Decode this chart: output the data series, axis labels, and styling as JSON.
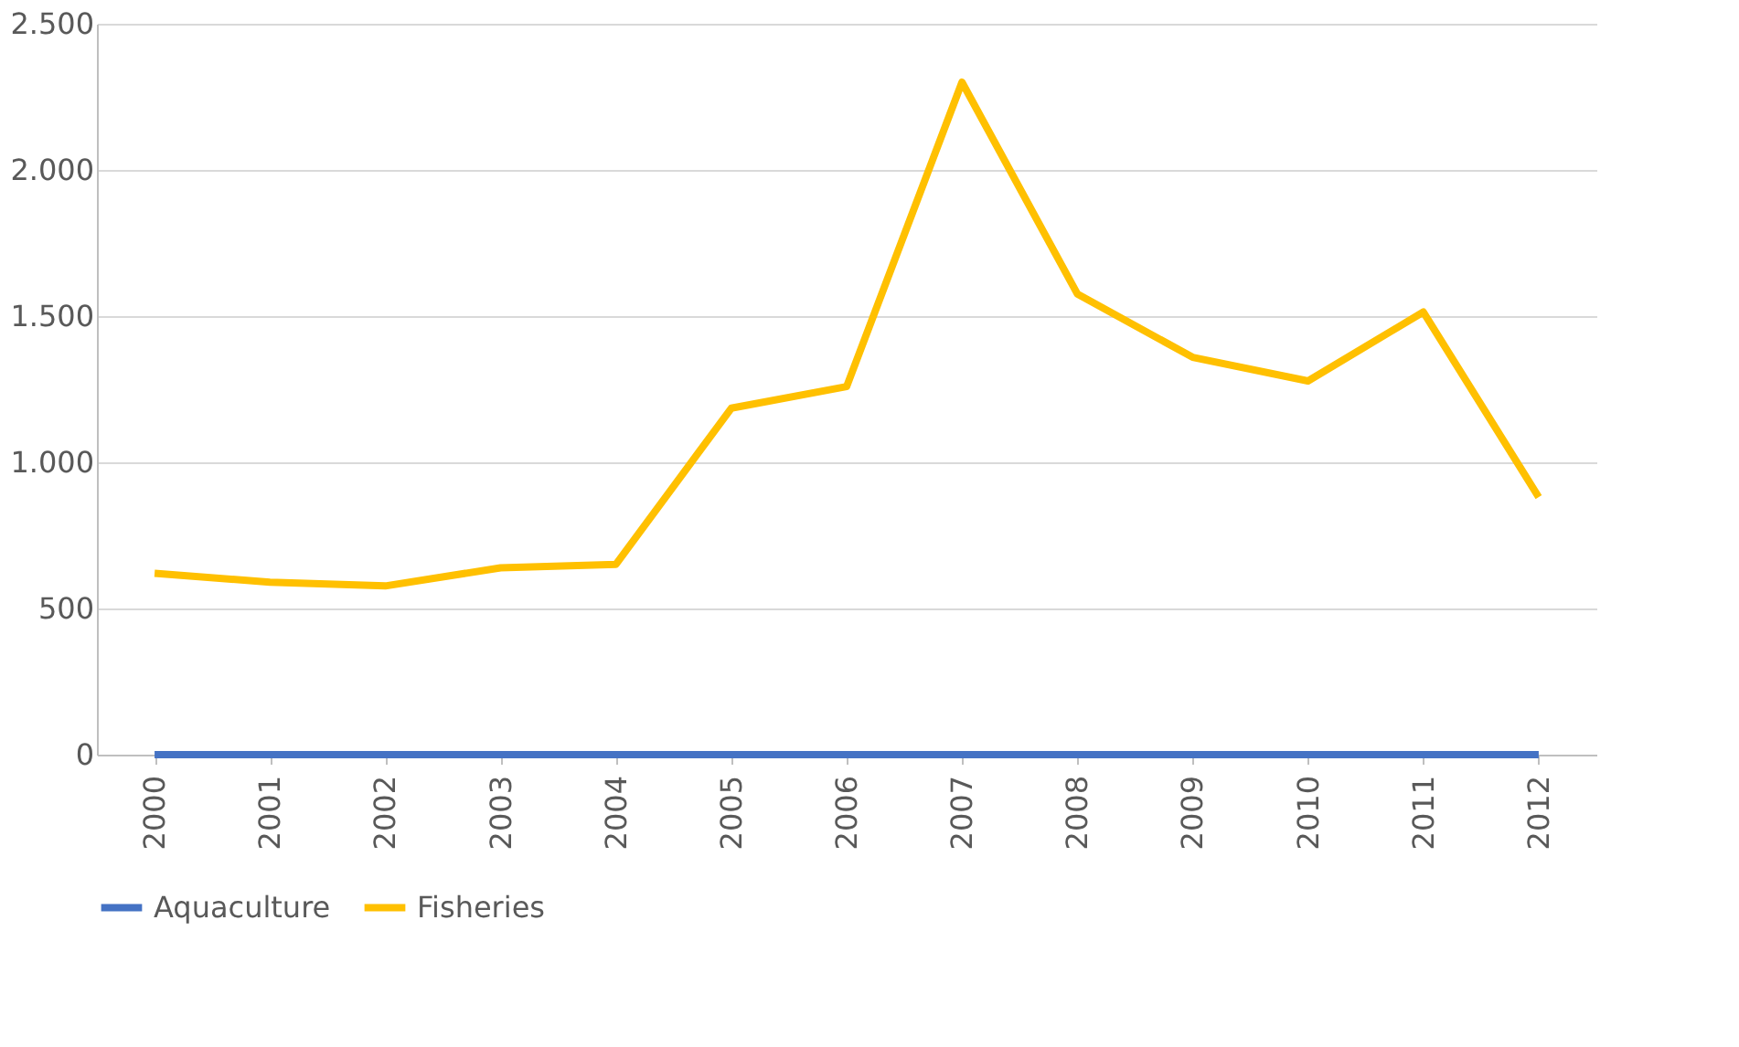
{
  "chart_data": {
    "type": "line",
    "categories": [
      "2000",
      "2001",
      "2002",
      "2003",
      "2004",
      "2005",
      "2006",
      "2007",
      "2008",
      "2009",
      "2010",
      "2011",
      "2012"
    ],
    "series": [
      {
        "name": "Aquaculture",
        "color": "#4472c4",
        "values": [
          0,
          0,
          0,
          0,
          0,
          0,
          0,
          0,
          0,
          0,
          0,
          0,
          0
        ]
      },
      {
        "name": "Fisheries",
        "color": "#ffc000",
        "values": [
          620,
          590,
          577,
          639,
          651,
          1185,
          1259,
          2300,
          1576,
          1359,
          1278,
          1514,
          881
        ]
      }
    ],
    "ylim": [
      0,
      2500
    ],
    "yticks": [
      0,
      500,
      {
        "value": 1000,
        "label": "1.000"
      },
      {
        "value": 1500,
        "label": "1.500"
      },
      {
        "value": 2000,
        "label": "2.000"
      },
      {
        "value": 2500,
        "label": "2.500"
      }
    ],
    "grid": "y",
    "legend": "bottom",
    "marker": "none",
    "line_style": "solid"
  }
}
